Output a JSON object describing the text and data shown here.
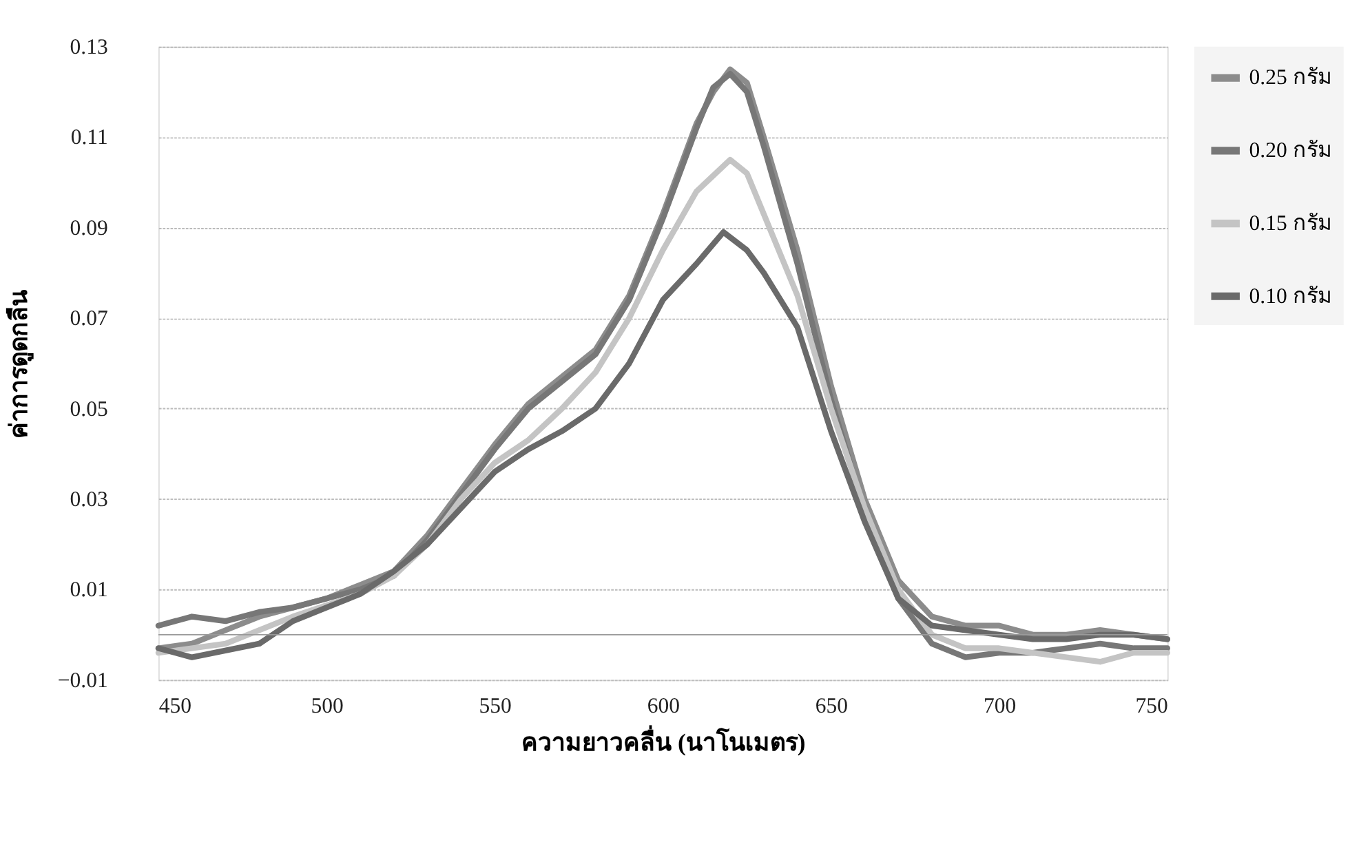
{
  "chart_data": {
    "type": "line",
    "xlabel": "ความยาวคลื่น (นาโนเมตร)",
    "ylabel": "ค่าการดูดกลืน",
    "xlim": [
      450,
      750
    ],
    "xticks": [
      450,
      500,
      550,
      600,
      650,
      700,
      750
    ],
    "ylim": [
      -0.01,
      0.13
    ],
    "yticks": [
      -0.01,
      0.01,
      0.03,
      0.05,
      0.07,
      0.09,
      0.11,
      0.13
    ],
    "grid": "y",
    "legend": "right",
    "line_style": "solid",
    "marker": "none",
    "ref_lines": [
      {
        "axis": "y",
        "value": 0,
        "label": null,
        "color": "#9a9a9a"
      }
    ],
    "series": [
      {
        "name": "0.25 กรัม",
        "color": "#8c8c8c",
        "x": [
          450,
          460,
          470,
          480,
          490,
          500,
          510,
          520,
          530,
          540,
          550,
          560,
          570,
          580,
          590,
          600,
          610,
          615,
          620,
          625,
          630,
          640,
          650,
          660,
          670,
          680,
          690,
          700,
          710,
          720,
          730,
          740,
          750
        ],
        "values": [
          -0.003,
          -0.002,
          0.001,
          0.004,
          0.006,
          0.008,
          0.011,
          0.014,
          0.022,
          0.032,
          0.042,
          0.051,
          0.057,
          0.063,
          0.075,
          0.093,
          0.113,
          0.12,
          0.125,
          0.122,
          0.11,
          0.085,
          0.055,
          0.03,
          0.012,
          0.004,
          0.002,
          0.002,
          0.0,
          0.0,
          0.001,
          0.0,
          -0.001
        ]
      },
      {
        "name": "0.20 กรัม",
        "color": "#777777",
        "x": [
          450,
          460,
          470,
          480,
          490,
          500,
          510,
          520,
          530,
          540,
          550,
          560,
          570,
          580,
          590,
          600,
          610,
          615,
          620,
          625,
          630,
          640,
          650,
          660,
          670,
          680,
          690,
          700,
          710,
          720,
          730,
          740,
          750
        ],
        "values": [
          0.002,
          0.004,
          0.003,
          0.005,
          0.006,
          0.008,
          0.01,
          0.013,
          0.021,
          0.031,
          0.041,
          0.05,
          0.056,
          0.062,
          0.074,
          0.092,
          0.112,
          0.121,
          0.124,
          0.12,
          0.108,
          0.082,
          0.052,
          0.027,
          0.008,
          -0.002,
          -0.005,
          -0.004,
          -0.004,
          -0.003,
          -0.002,
          -0.003,
          -0.003
        ]
      },
      {
        "name": "0.15 กรัม",
        "color": "#c4c4c4",
        "x": [
          450,
          470,
          490,
          510,
          520,
          530,
          540,
          550,
          560,
          570,
          580,
          590,
          600,
          610,
          620,
          625,
          630,
          640,
          650,
          660,
          670,
          680,
          690,
          700,
          710,
          720,
          730,
          740,
          750
        ],
        "values": [
          -0.004,
          -0.002,
          0.004,
          0.009,
          0.013,
          0.02,
          0.03,
          0.038,
          0.043,
          0.05,
          0.058,
          0.07,
          0.085,
          0.098,
          0.105,
          0.102,
          0.093,
          0.075,
          0.05,
          0.028,
          0.01,
          0.0,
          -0.003,
          -0.003,
          -0.004,
          -0.005,
          -0.006,
          -0.004,
          -0.004
        ]
      },
      {
        "name": "0.10 กรัม",
        "color": "#6a6a6a",
        "x": [
          450,
          460,
          480,
          490,
          500,
          510,
          520,
          530,
          540,
          550,
          560,
          570,
          580,
          590,
          600,
          610,
          618,
          625,
          630,
          640,
          650,
          660,
          670,
          680,
          690,
          700,
          710,
          720,
          730,
          740,
          750
        ],
        "values": [
          -0.003,
          -0.005,
          -0.002,
          0.003,
          0.006,
          0.009,
          0.014,
          0.02,
          0.028,
          0.036,
          0.041,
          0.045,
          0.05,
          0.06,
          0.074,
          0.082,
          0.089,
          0.085,
          0.08,
          0.068,
          0.045,
          0.025,
          0.008,
          0.002,
          0.001,
          0.0,
          -0.001,
          -0.001,
          0.0,
          0.0,
          -0.001
        ]
      }
    ]
  }
}
